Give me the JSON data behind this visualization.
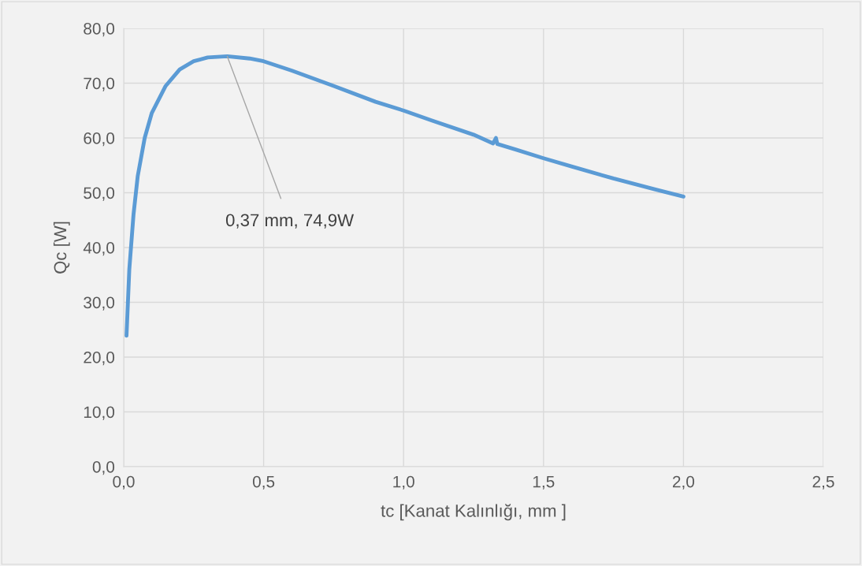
{
  "chart_data": {
    "type": "line",
    "xlabel": "tc [Kanat Kalınlığı, mm ]",
    "ylabel": "Qc [W]",
    "x": [
      0.01,
      0.02,
      0.035,
      0.05,
      0.075,
      0.1,
      0.15,
      0.2,
      0.25,
      0.3,
      0.37,
      0.45,
      0.5,
      0.6,
      0.75,
      0.9,
      1.0,
      1.1,
      1.25,
      1.32,
      1.33,
      1.335,
      1.4,
      1.5,
      1.6,
      1.75,
      1.9,
      2.0
    ],
    "series": [
      {
        "color": "#5b9bd5",
        "values": [
          23.9,
          36.0,
          46.0,
          53.0,
          60.0,
          64.5,
          69.5,
          72.5,
          74.0,
          74.7,
          74.9,
          74.5,
          74.0,
          72.3,
          69.5,
          66.6,
          65.0,
          63.2,
          60.6,
          59.0,
          60.0,
          58.9,
          57.9,
          56.3,
          54.8,
          52.6,
          50.6,
          49.3
        ]
      }
    ],
    "xlim": [
      0,
      2.5
    ],
    "ylim": [
      0,
      80
    ],
    "xticks": [
      {
        "value": 0,
        "label": "0,0"
      },
      {
        "value": 0.5,
        "label": "0,5"
      },
      {
        "value": 1.0,
        "label": "1,0"
      },
      {
        "value": 1.5,
        "label": "1,5"
      },
      {
        "value": 2.0,
        "label": "2,0"
      },
      {
        "value": 2.5,
        "label": "2,5"
      }
    ],
    "yticks": [
      {
        "value": 0,
        "label": "0,0"
      },
      {
        "value": 10,
        "label": "10,0"
      },
      {
        "value": 20,
        "label": "20,0"
      },
      {
        "value": 30,
        "label": "30,0"
      },
      {
        "value": 40,
        "label": "40,0"
      },
      {
        "value": 50,
        "label": "50,0"
      },
      {
        "value": 60,
        "label": "60,0"
      },
      {
        "value": 70,
        "label": "70,0"
      },
      {
        "value": 80,
        "label": "80,0"
      }
    ],
    "grid": true,
    "marker": "none",
    "line_style": "solid",
    "annotations": [
      {
        "text": "0,37 mm, 74,9W",
        "x": 0.37,
        "y": 74.9
      }
    ]
  }
}
